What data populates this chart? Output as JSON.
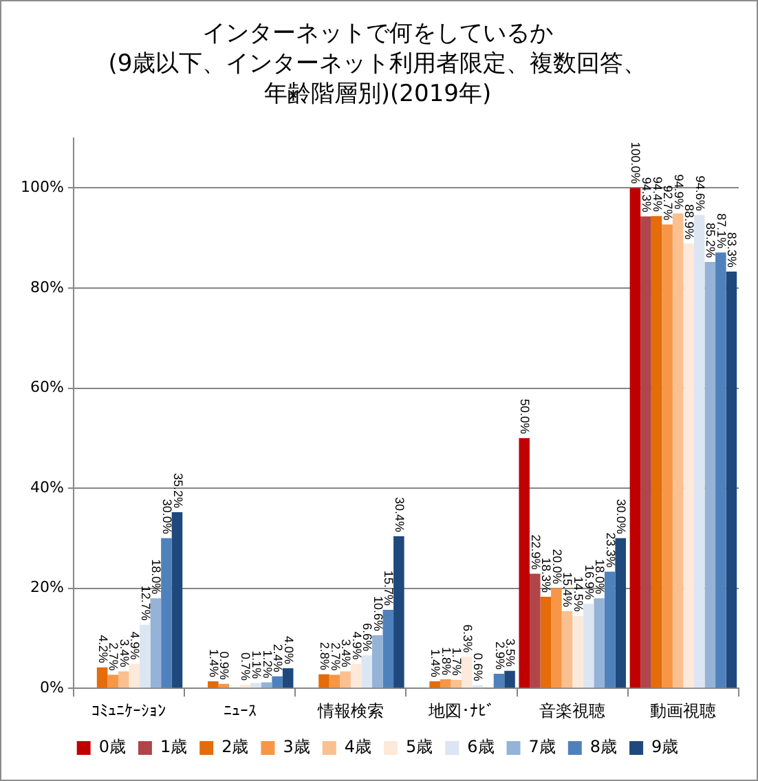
{
  "chart_data": {
    "type": "bar",
    "title": "インターネットで何をしているか",
    "subtitle": "(9歳以下、インターネット利用者限定、複数回答、年齢階層別)(2019年)",
    "categories": [
      "ｺﾐｭﾆｹｰｼｮﾝ",
      "ﾆｭｰｽ",
      "情報検索",
      "地図･ﾅﾋﾞ",
      "音楽視聴",
      "動画視聴"
    ],
    "series": [
      {
        "name": "0歳",
        "color": "#c00000",
        "values": [
          null,
          null,
          null,
          null,
          50.0,
          100.0
        ],
        "value_labels": [
          null,
          null,
          null,
          null,
          "50.0%",
          "100.0%"
        ]
      },
      {
        "name": "1歳",
        "color": "#b0464a",
        "values": [
          null,
          null,
          null,
          null,
          22.9,
          94.3
        ],
        "value_labels": [
          null,
          null,
          null,
          null,
          "22.9%",
          "94.3%"
        ]
      },
      {
        "name": "2歳",
        "color": "#e46c0a",
        "values": [
          4.2,
          1.4,
          2.8,
          1.4,
          18.3,
          94.4
        ],
        "value_labels": [
          "4.2%",
          "1.4%",
          "2.8%",
          "1.4%",
          "18.3%",
          "94.4%"
        ]
      },
      {
        "name": "3歳",
        "color": "#f79646",
        "values": [
          2.7,
          0.9,
          2.7,
          1.8,
          20.0,
          92.7
        ],
        "value_labels": [
          "2.7%",
          "0.9%",
          "2.7%",
          "1.8%",
          "20.0%",
          "92.7%"
        ]
      },
      {
        "name": "4歳",
        "color": "#fac090",
        "values": [
          3.4,
          null,
          3.4,
          1.7,
          15.4,
          94.9
        ],
        "value_labels": [
          "3.4%",
          null,
          "3.4%",
          "1.7%",
          "15.4%",
          "94.9%"
        ]
      },
      {
        "name": "5歳",
        "color": "#fde9d9",
        "values": [
          4.9,
          0.7,
          4.9,
          6.3,
          14.5,
          88.9
        ],
        "value_labels": [
          "4.9%",
          "0.7%",
          "4.9%",
          "6.3%",
          "14.5%",
          "88.9%"
        ]
      },
      {
        "name": "6歳",
        "color": "#dce6f2",
        "values": [
          12.7,
          1.1,
          6.6,
          0.6,
          16.9,
          94.6
        ],
        "value_labels": [
          "12.7%",
          "1.1%",
          "6.6%",
          "0.6%",
          "16.9%",
          "94.6%"
        ]
      },
      {
        "name": "7歳",
        "color": "#95b3d7",
        "values": [
          18.0,
          1.2,
          10.6,
          null,
          18.0,
          85.2
        ],
        "value_labels": [
          "18.0%",
          "1.2%",
          "10.6%",
          null,
          "18.0%",
          "85.2%"
        ]
      },
      {
        "name": "8歳",
        "color": "#4f81bd",
        "values": [
          30.0,
          2.4,
          15.7,
          2.9,
          23.3,
          87.1
        ],
        "value_labels": [
          "30.0%",
          "2.4%",
          "15.7%",
          "2.9%",
          "23.3%",
          "87.1%"
        ]
      },
      {
        "name": "9歳",
        "color": "#1f497d",
        "values": [
          35.2,
          4.0,
          30.4,
          3.5,
          30.0,
          83.3
        ],
        "value_labels": [
          "35.2%",
          "4.0%",
          "30.4%",
          "3.5%",
          "30.0%",
          "83.3%"
        ]
      }
    ],
    "ylim": [
      0,
      110
    ],
    "yticks": [
      {
        "value": 0,
        "label": "0%"
      },
      {
        "value": 20,
        "label": "20%"
      },
      {
        "value": 40,
        "label": "40%"
      },
      {
        "value": 60,
        "label": "60%"
      },
      {
        "value": 80,
        "label": "80%"
      },
      {
        "value": 100,
        "label": "100%"
      }
    ],
    "grid": "y",
    "legend": "bottom"
  }
}
